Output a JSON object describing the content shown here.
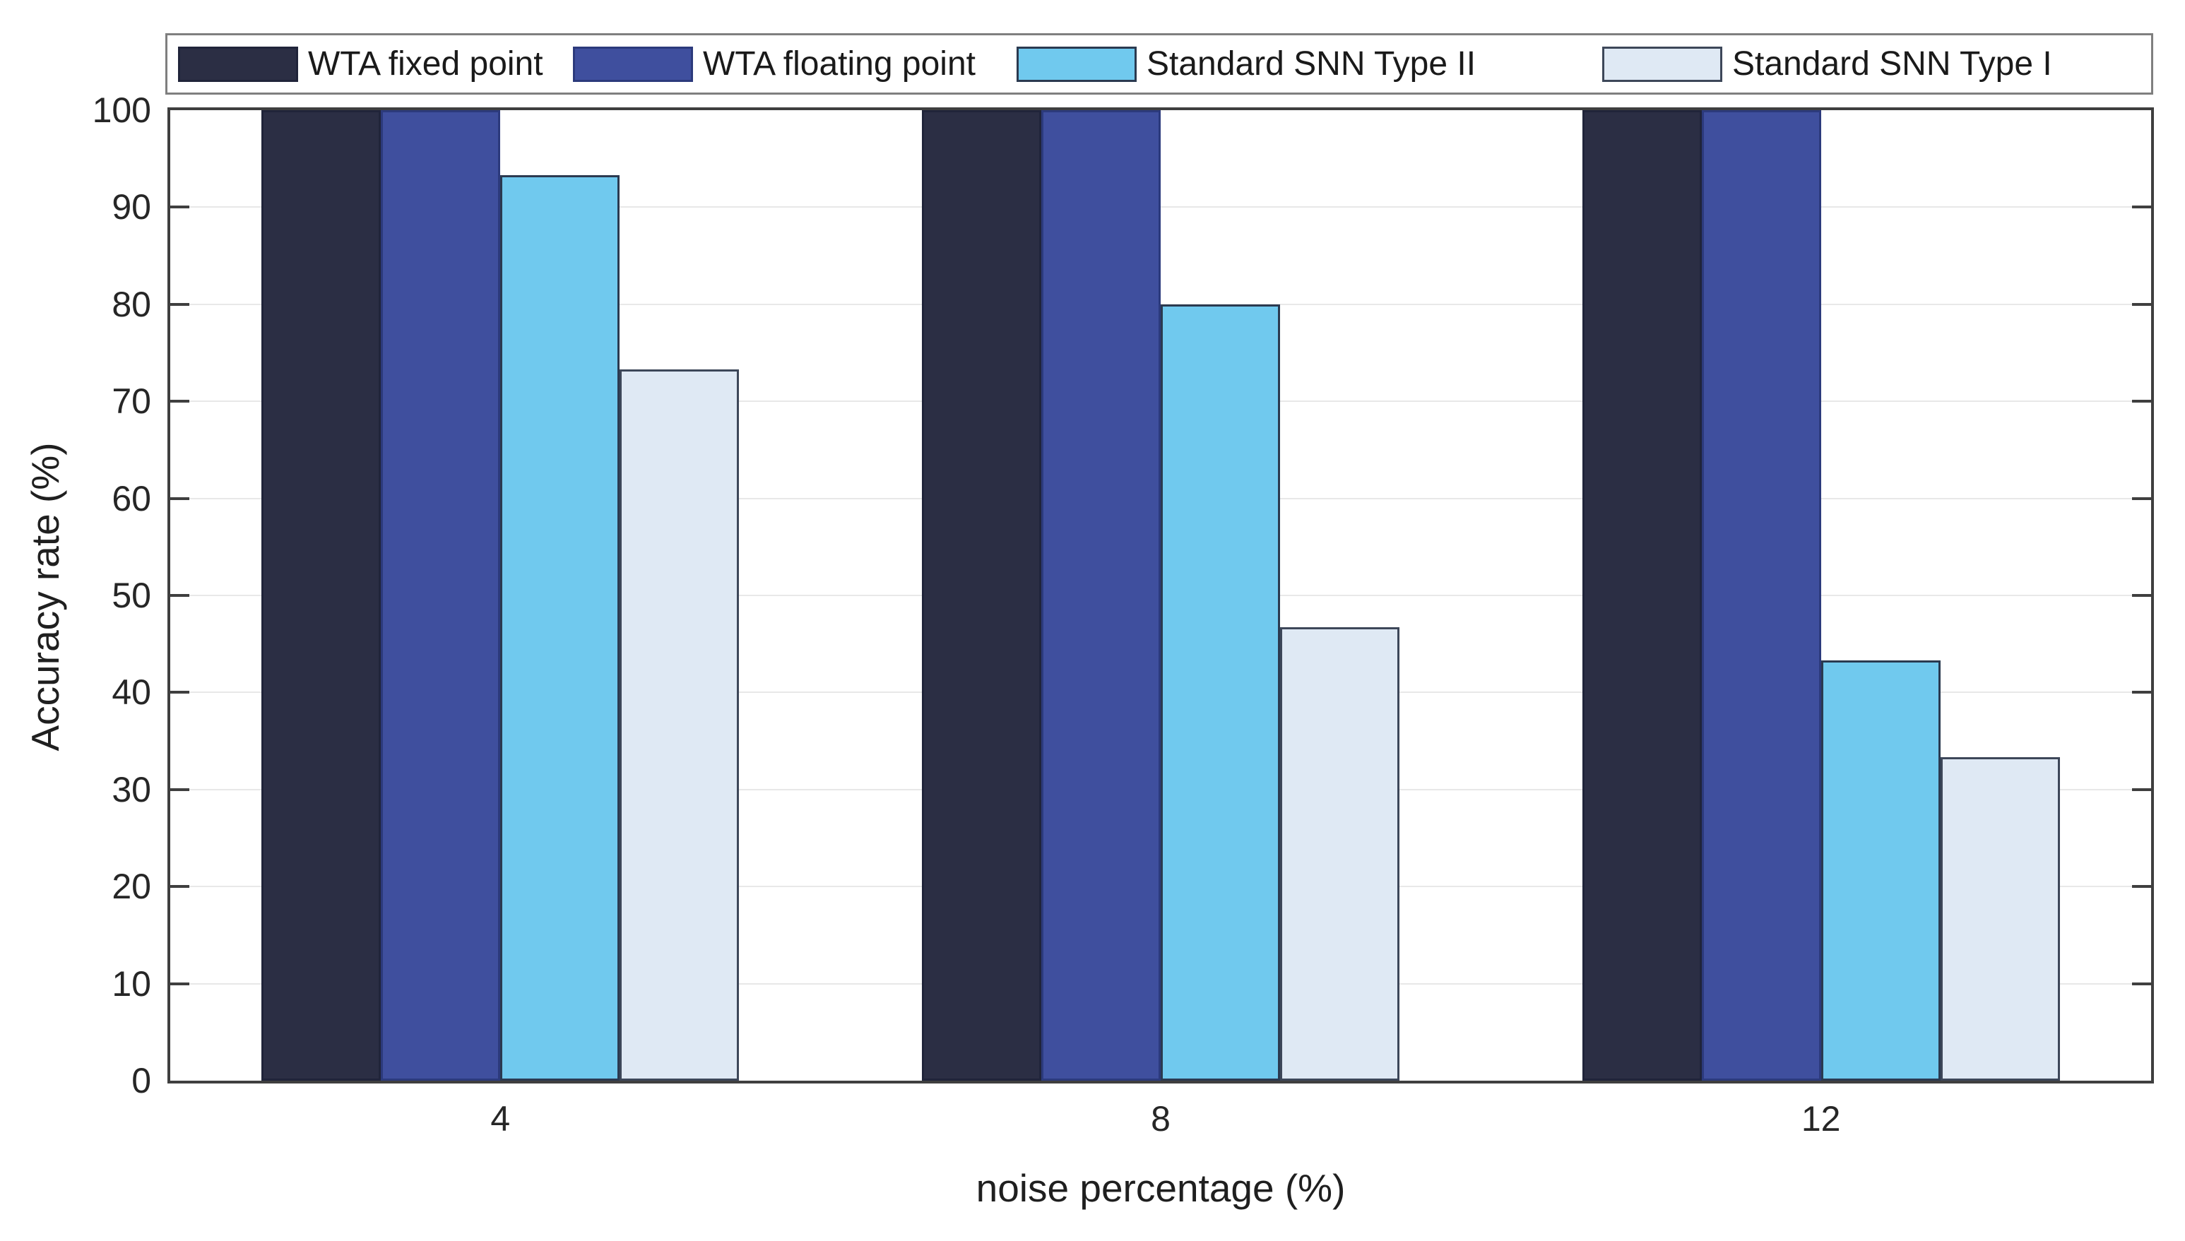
{
  "figure": {
    "xlabel": "noise percentage (%)",
    "ylabel": "Accuracy rate (%)"
  },
  "chart_data": {
    "type": "bar",
    "title": "",
    "xlabel": "noise percentage (%)",
    "ylabel": "Accuracy rate (%)",
    "categories": [
      "4",
      "8",
      "12"
    ],
    "series": [
      {
        "name": "WTA fixed point",
        "color": "#2b2e44",
        "edge_color": "#20243a",
        "values": [
          100,
          100,
          100
        ]
      },
      {
        "name": "WTA floating point",
        "color": "#3f4f9e",
        "edge_color": "#2c3a7c",
        "values": [
          100,
          100,
          100
        ]
      },
      {
        "name": "Standard SNN Type II",
        "color": "#70c9ee",
        "edge_color": "#2b3a50",
        "values": [
          93.3,
          80,
          43.3
        ]
      },
      {
        "name": "Standard SNN Type I",
        "color": "#dfe9f4",
        "edge_color": "#3d4759",
        "values": [
          73.3,
          46.7,
          33.3
        ]
      }
    ],
    "ylim": [
      0,
      100
    ],
    "yticks": [
      0,
      10,
      20,
      30,
      40,
      50,
      60,
      70,
      80,
      90,
      100
    ],
    "xticks": [
      "4",
      "8",
      "12"
    ],
    "grid": "horizontal",
    "gridline_color": "#e8e8e8",
    "axis_color": "#3f3f3f",
    "tick_label_color": "#262626",
    "legend": {
      "position": "top",
      "orientation": "horizontal",
      "border_color": "#7f7f7f",
      "labels": [
        "WTA fixed point",
        "WTA floating point",
        "Standard SNN Type II",
        "Standard SNN Type I"
      ]
    }
  }
}
